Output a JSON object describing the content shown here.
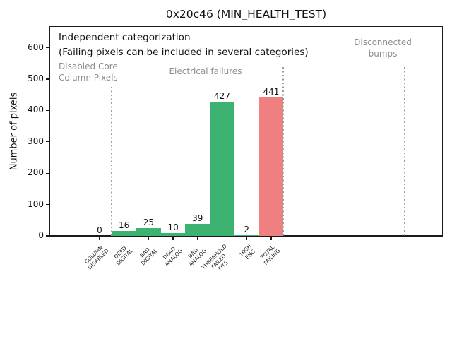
{
  "chart_data": {
    "type": "bar",
    "title": "0x20c46 (MIN_HEALTH_TEST)",
    "ylabel": "Number of pixels",
    "xlabel": "",
    "ylim": [
      0,
      668
    ],
    "yticks": [
      0,
      100,
      200,
      300,
      400,
      500,
      600
    ],
    "categories": [
      "COLUMN\nDISABLED",
      "DEAD\nDIGITAL",
      "BAD\nDIGITAL",
      "DEAD\nANALOG",
      "BAD\nANALOG",
      "THRESHOLD\nFAILED\nFITS",
      "HIGH\nENC",
      "TOTAL\nFAILING"
    ],
    "values": [
      0,
      16,
      25,
      10,
      39,
      427,
      2,
      441
    ],
    "bar_colors": [
      "#3cb371",
      "#3cb371",
      "#3cb371",
      "#3cb371",
      "#3cb371",
      "#3cb371",
      "#3cb371",
      "#f08080"
    ],
    "grid": false,
    "legend": null,
    "annotations": {
      "note": [
        "Independent categorization",
        "(Failing pixels can be included in several categories)"
      ],
      "section_labels": [
        "Disabled Core\nColumn Pixels",
        "Electrical failures",
        "Disconnected\nbumps"
      ]
    },
    "separators_units": [
      0.5,
      7.5,
      12.46
    ]
  },
  "colors": {
    "bar_green": "#3cb371",
    "bar_red": "#f08080",
    "muted_text": "#8d8d8d",
    "separator": "#9b9b9b",
    "axis_text": "#111111"
  }
}
